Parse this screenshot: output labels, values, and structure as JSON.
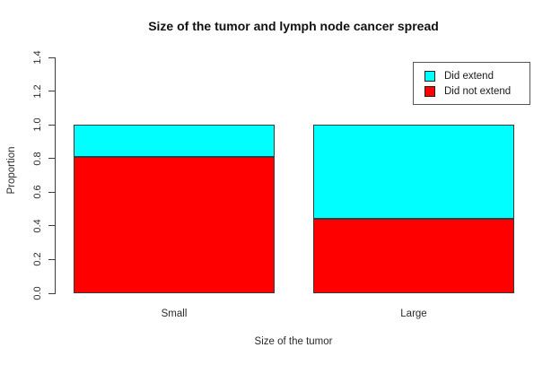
{
  "chart_data": {
    "type": "bar",
    "stacked": true,
    "title": "Size of the tumor and lymph node cancer spread",
    "xlabel": "Size of the tumor",
    "ylabel": "Proportion",
    "categories": [
      "Small",
      "Large"
    ],
    "series": [
      {
        "name": "Did not extend",
        "color": "#FF0000",
        "values": [
          0.81,
          0.44
        ]
      },
      {
        "name": "Did extend",
        "color": "#00FFFF",
        "values": [
          0.19,
          0.56
        ]
      }
    ],
    "ylim": [
      0,
      1.4
    ],
    "ytick_labels": [
      "0.0",
      "0.2",
      "0.4",
      "0.6",
      "0.8",
      "1.0",
      "1.2",
      "1.4"
    ],
    "ytick_values": [
      0.0,
      0.2,
      0.4,
      0.6,
      0.8,
      1.0,
      1.2,
      1.4
    ],
    "grid": false,
    "legend": {
      "position": "top-right",
      "entries": [
        {
          "label": "Did extend",
          "color": "#00FFFF"
        },
        {
          "label": "Did not extend",
          "color": "#FF0000"
        }
      ]
    }
  }
}
